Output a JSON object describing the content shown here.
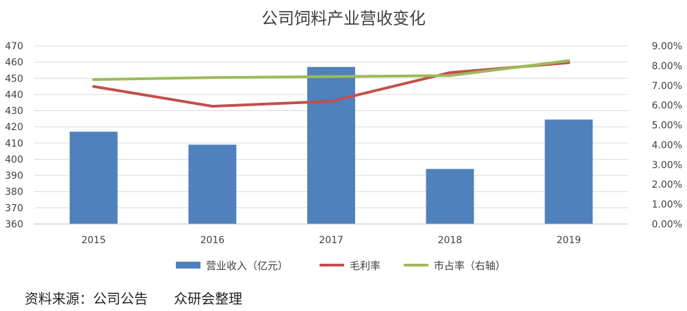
{
  "chart_data": {
    "type": "bar",
    "title": "公司饲料产业营收变化",
    "categories": [
      "2015",
      "2016",
      "2017",
      "2018",
      "2019"
    ],
    "series": [
      {
        "name": "营业收入（亿元）",
        "type": "bar",
        "axis": "left",
        "color": "#4f81bd",
        "values": [
          417,
          409,
          457,
          394,
          424.5
        ]
      },
      {
        "name": "毛利率",
        "type": "line",
        "axis": "right",
        "color": "#c0504d",
        "values": [
          6.95,
          5.95,
          6.2,
          7.65,
          8.15
        ]
      },
      {
        "name": "市占率（右轴）",
        "type": "line",
        "axis": "right",
        "color": "#9bbb59",
        "values": [
          7.3,
          7.4,
          7.45,
          7.5,
          8.25
        ]
      }
    ],
    "ylim": [
      360,
      470
    ],
    "yticks": [
      "470",
      "460",
      "450",
      "440",
      "430",
      "420",
      "410",
      "400",
      "390",
      "380",
      "370",
      "360"
    ],
    "y2lim": [
      0,
      9
    ],
    "y2ticks": [
      "9.00%",
      "8.00%",
      "7.00%",
      "6.00%",
      "5.00%",
      "4.00%",
      "3.00%",
      "2.00%",
      "1.00%",
      "0.00%"
    ],
    "grid": true,
    "legend_position": "bottom"
  },
  "source_note": "资料来源：公司公告      众研会整理"
}
